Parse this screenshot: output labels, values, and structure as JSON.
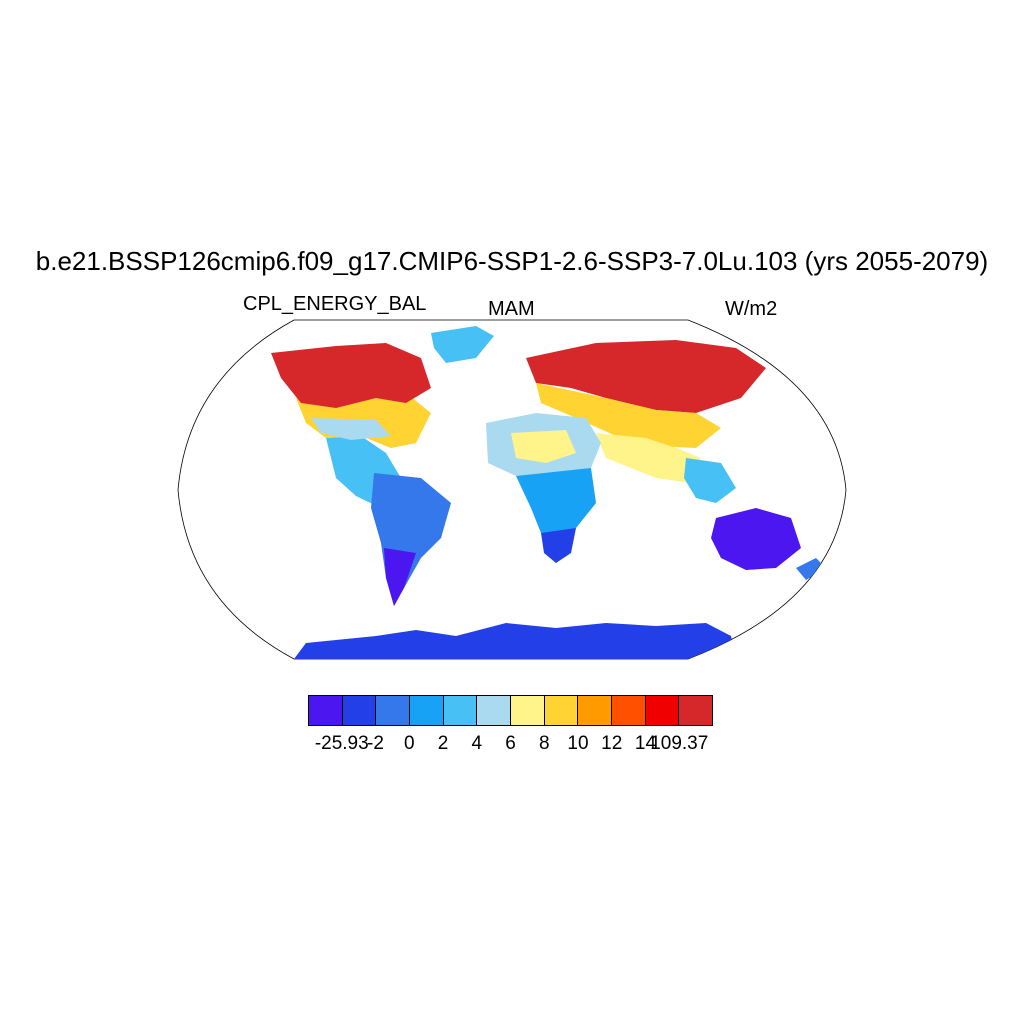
{
  "title": "b.e21.BSSP126cmip6.f09_g17.CMIP6-SSP1-2.6-SSP3-7.0Lu.103 (yrs 2055-2079)",
  "left_string": "CPL_ENERGY_BAL",
  "center_string": "MAM",
  "right_string": "W/m2",
  "colorbar": {
    "colors": [
      "#4b16f0",
      "#2340e8",
      "#3478eb",
      "#18a2f5",
      "#46c0f5",
      "#a9daf0",
      "#fff48a",
      "#ffd331",
      "#ff9a00",
      "#ff5000",
      "#f00000",
      "#d6282a"
    ],
    "labels": [
      "-25.93",
      "-2",
      "0",
      "2",
      "4",
      "6",
      "8",
      "10",
      "12",
      "14",
      "109.37"
    ]
  },
  "chart_data": {
    "type": "heatmap",
    "title": "b.e21.BSSP126cmip6.f09_g17.CMIP6-SSP1-2.6-SSP3-7.0Lu.103 (yrs 2055-2079)",
    "variable": "CPL_ENERGY_BAL",
    "season": "MAM",
    "units": "W/m2",
    "projection": "Robinson",
    "color_levels": [
      -25.93,
      -2,
      0,
      2,
      4,
      6,
      8,
      10,
      12,
      14,
      109.37
    ],
    "regions": [
      {
        "name": "Northern North America",
        "level": "12 to 109.37"
      },
      {
        "name": "Eastern North America / Great Lakes",
        "level": "8 to 12"
      },
      {
        "name": "Southern United States / Mexico",
        "level": "2 to 6"
      },
      {
        "name": "South America",
        "level": "-25.93 to 2"
      },
      {
        "name": "Northern Eurasia / Siberia",
        "level": "12 to 109.37"
      },
      {
        "name": "Central Asia",
        "level": "8 to 12"
      },
      {
        "name": "Sahara / North Africa",
        "level": "2 to 8"
      },
      {
        "name": "Southern Africa",
        "level": "-25.93 to 2"
      },
      {
        "name": "South / Southeast Asia",
        "level": "2 to 8"
      },
      {
        "name": "Australia",
        "level": "-25.93 to 0"
      },
      {
        "name": "Antarctica",
        "level": "-2 to 0"
      },
      {
        "name": "Greenland",
        "level": "2 to 4"
      }
    ]
  }
}
